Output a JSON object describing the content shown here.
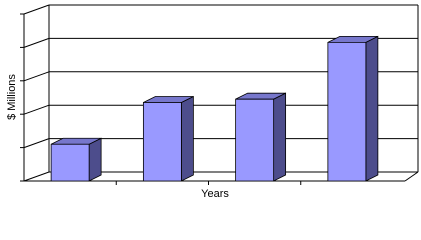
{
  "chart_data": {
    "type": "bar3d",
    "y_label": "$ Millions",
    "x_label": "Years",
    "categories": [
      null,
      null,
      null,
      null
    ],
    "values": [
      1.1,
      2.35,
      2.45,
      4.15
    ],
    "color": "#9999ff",
    "ylim": [
      0,
      5
    ],
    "yticks": [
      0,
      1,
      2,
      3,
      4,
      5
    ],
    "grid": true
  }
}
